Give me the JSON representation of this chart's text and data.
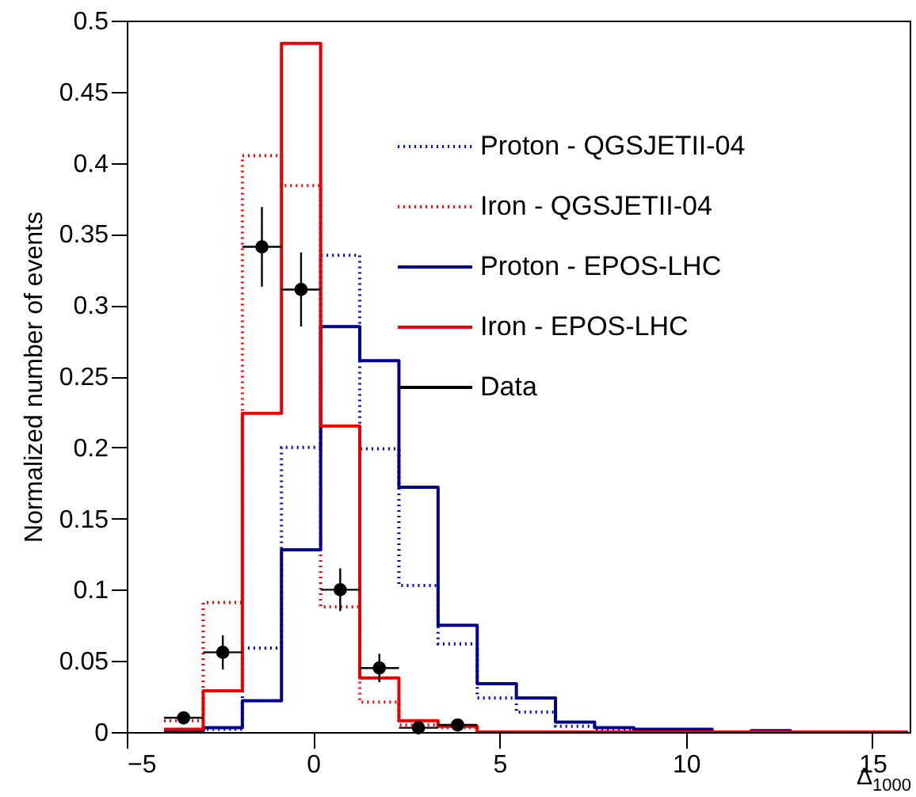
{
  "chart_data": {
    "type": "histogram",
    "xlabel": "Δ$_{1000}$",
    "ylabel": "Normalized number of events",
    "bins": [
      -4,
      -2.95,
      -1.9,
      -0.85,
      0.2,
      1.25,
      2.3,
      3.35,
      4.4,
      5.45,
      6.5,
      7.55,
      8.6,
      9.65,
      10.7,
      11.75,
      12.8,
      13.85,
      14.9,
      15.95
    ],
    "series": [
      {
        "name": "Proton - QGSJETII-04",
        "color": "#0000cc",
        "line_style": "dotted",
        "values": [
          0.001,
          0.002,
          0.059,
          0.2,
          0.335,
          0.199,
          0.103,
          0.062,
          0.024,
          0.014,
          0.004,
          0.002,
          0.001,
          0,
          0,
          0,
          0,
          0,
          0
        ]
      },
      {
        "name": "Iron - QGSJETII-04",
        "color": "#ff0000",
        "line_style": "dotted",
        "values": [
          0.008,
          0.091,
          0.405,
          0.384,
          0.088,
          0.021,
          0.005,
          0.003,
          0,
          0,
          0,
          0,
          0,
          0,
          0,
          0,
          0,
          0,
          0
        ]
      },
      {
        "name": "Proton - EPOS-LHC",
        "color": "#00008b",
        "line_style": "solid",
        "values": [
          0.001,
          0.003,
          0.022,
          0.128,
          0.285,
          0.261,
          0.172,
          0.075,
          0.034,
          0.024,
          0.007,
          0.003,
          0.002,
          0.002,
          0,
          0.001,
          0,
          0,
          0
        ]
      },
      {
        "name": "Iron - EPOS-LHC",
        "color": "#e60000",
        "line_style": "solid",
        "values": [
          0.002,
          0.029,
          0.224,
          0.484,
          0.215,
          0.038,
          0.008,
          0.004,
          0,
          0,
          0,
          0,
          0,
          0,
          0,
          0,
          0,
          0,
          0
        ]
      },
      {
        "name": "Data",
        "color": "#000000",
        "type": "scatter",
        "marker": "circle",
        "x": [
          -3.475,
          -2.425,
          -1.375,
          -0.325,
          0.725,
          1.775,
          2.825,
          3.875
        ],
        "values": [
          0.01,
          0.056,
          0.341,
          0.311,
          0.1,
          0.045,
          0.003,
          0.005
        ],
        "errors": [
          0.004,
          0.012,
          0.028,
          0.026,
          0.015,
          0.01,
          0.002,
          0.002
        ],
        "xerrors": [
          0.525,
          0.525,
          0.525,
          0.525,
          0.525,
          0.525,
          0.525,
          0.525
        ]
      }
    ],
    "xlim": [
      -5,
      16
    ],
    "xticks": [
      -5,
      0,
      5,
      10,
      15
    ],
    "ylim": [
      0,
      0.5
    ],
    "yticks": [
      0,
      0.05,
      0.1,
      0.15,
      0.2,
      0.25,
      0.3,
      0.35,
      0.4,
      0.45,
      0.5
    ],
    "legend": "top right"
  }
}
